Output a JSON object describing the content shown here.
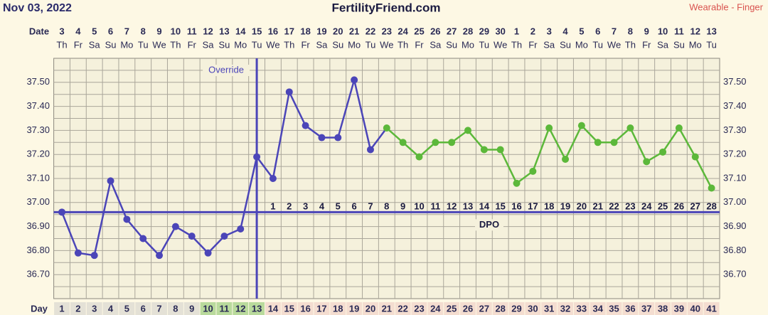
{
  "chart_data": {
    "type": "line",
    "title": "FertilityFriend.com",
    "subtitle": "Nov 03, 2022",
    "source": "Wearable - Finger",
    "date_row_label": "Date",
    "day_row_label": "Day",
    "dates": [
      3,
      4,
      5,
      6,
      7,
      8,
      9,
      10,
      11,
      12,
      13,
      14,
      15,
      16,
      17,
      18,
      19,
      20,
      21,
      22,
      23,
      24,
      25,
      26,
      27,
      28,
      29,
      30,
      1,
      2,
      3,
      4,
      5,
      6,
      7,
      8,
      9,
      10,
      11,
      12,
      13
    ],
    "weekdays": [
      "Th",
      "Fr",
      "Sa",
      "Su",
      "Mo",
      "Tu",
      "We",
      "Th",
      "Fr",
      "Sa",
      "Su",
      "Mo",
      "Tu",
      "We",
      "Th",
      "Fr",
      "Sa",
      "Su",
      "Mo",
      "Tu",
      "We",
      "Th",
      "Fr",
      "Sa",
      "Su",
      "Mo",
      "Tu",
      "We",
      "Th",
      "Fr",
      "Sa",
      "Su",
      "Mo",
      "Tu",
      "We",
      "Th",
      "Fr",
      "Sa",
      "Su",
      "Mo",
      "Tu"
    ],
    "categories": [
      1,
      2,
      3,
      4,
      5,
      6,
      7,
      8,
      9,
      10,
      11,
      12,
      13,
      14,
      15,
      16,
      17,
      18,
      19,
      20,
      21,
      22,
      23,
      24,
      25,
      26,
      27,
      28,
      29,
      30,
      31,
      32,
      33,
      34,
      35,
      36,
      37,
      38,
      39,
      40,
      41
    ],
    "day_colors": [
      "#e4e1d6",
      "#e4e1d6",
      "#e4e1d6",
      "#e4e1d6",
      "#e4e1d6",
      "#e4e1d6",
      "#e4e1d6",
      "#e4e1d6",
      "#e4e1d6",
      "#b9da9c",
      "#b9da9c",
      "#b9da9c",
      "#b9da9c",
      "#f4ddd0",
      "#f4ddd0",
      "#f4ddd0",
      "#f4ddd0",
      "#f4ddd0",
      "#f4ddd0",
      "#f4ddd0",
      "#f4ddd0",
      "#f4ddd0",
      "#f4ddd0",
      "#f4ddd0",
      "#f4ddd0",
      "#f4ddd0",
      "#f4ddd0",
      "#f4ddd0",
      "#f4ddd0",
      "#f4ddd0",
      "#f4ddd0",
      "#f4ddd0",
      "#f4ddd0",
      "#f4ddd0",
      "#f4ddd0",
      "#f4ddd0",
      "#f4ddd0",
      "#f4ddd0",
      "#f4ddd0",
      "#f4ddd0",
      "#f4ddd0"
    ],
    "dpo": [
      null,
      null,
      null,
      null,
      null,
      null,
      null,
      null,
      null,
      null,
      null,
      null,
      null,
      1,
      2,
      3,
      4,
      5,
      6,
      7,
      8,
      9,
      10,
      11,
      12,
      13,
      14,
      15,
      16,
      17,
      18,
      19,
      20,
      21,
      22,
      23,
      24,
      25,
      26,
      27,
      28
    ],
    "dpo_label": "DPO",
    "coverline": 36.96,
    "coverline_color": "#4b45b8",
    "override": {
      "label": "Override",
      "day": 13
    },
    "series": [
      {
        "color": "#4b45b8",
        "values": [
          36.96,
          36.79,
          36.78,
          37.09,
          36.93,
          36.85,
          36.78,
          36.9,
          36.86,
          36.79,
          36.86,
          36.89,
          37.19,
          37.1,
          37.46,
          37.32,
          37.27,
          37.27,
          37.51,
          37.22,
          null,
          null,
          null,
          null,
          null,
          null,
          null,
          null,
          null,
          null,
          null,
          null,
          null,
          null,
          null,
          null,
          null,
          null,
          null,
          null,
          null
        ]
      },
      {
        "color": "#5cb83a",
        "values": [
          null,
          null,
          null,
          null,
          null,
          null,
          null,
          null,
          null,
          null,
          null,
          null,
          null,
          null,
          null,
          null,
          null,
          null,
          null,
          null,
          37.31,
          37.25,
          37.19,
          37.25,
          37.25,
          37.3,
          37.22,
          37.22,
          37.08,
          37.13,
          37.31,
          37.18,
          37.32,
          37.25,
          37.25,
          37.31,
          37.17,
          37.21,
          37.31,
          37.19,
          37.06
        ]
      }
    ],
    "ylim": [
      36.6,
      37.6
    ],
    "yticks": [
      {
        "value": 36.7,
        "label": "36.70"
      },
      {
        "value": 36.8,
        "label": "36.80"
      },
      {
        "value": 36.9,
        "label": "36.90"
      },
      {
        "value": 37.0,
        "label": "37.00"
      },
      {
        "value": 37.1,
        "label": "37.10"
      },
      {
        "value": 37.2,
        "label": "37.20"
      },
      {
        "value": 37.3,
        "label": "37.30"
      },
      {
        "value": 37.4,
        "label": "37.40"
      },
      {
        "value": 37.5,
        "label": "37.50"
      }
    ],
    "grid": true
  }
}
